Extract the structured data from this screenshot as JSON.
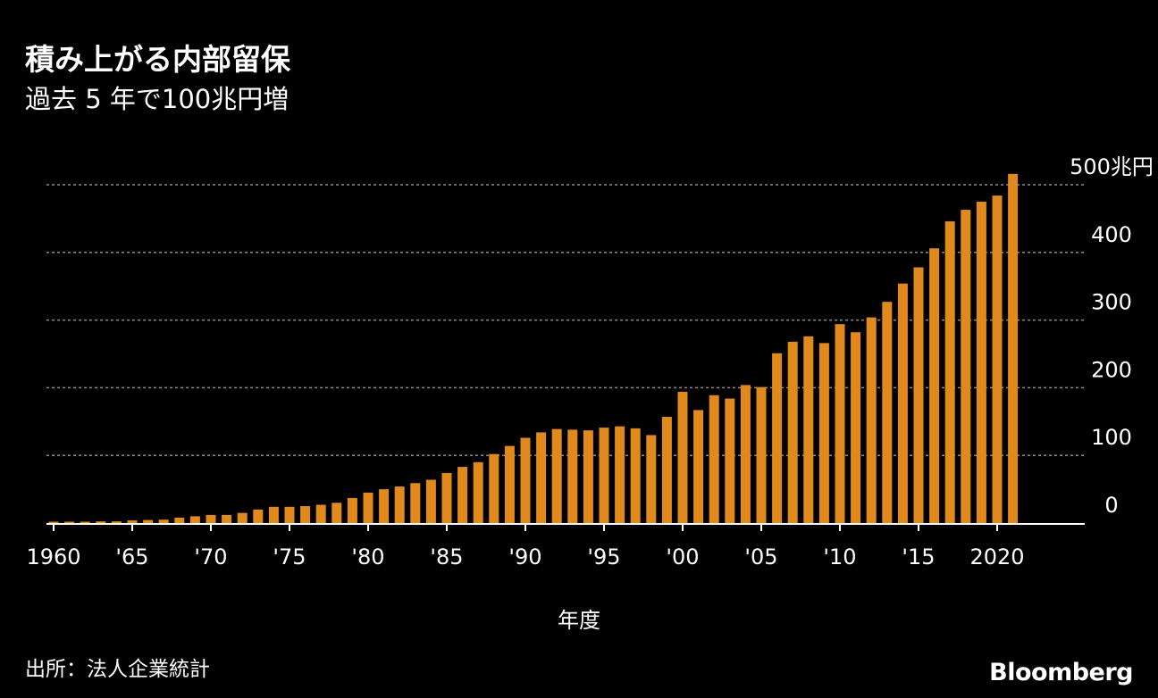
{
  "header": {
    "title": "積み上がる内部留保",
    "subtitle": "過去 5 年で100兆円増"
  },
  "footer": {
    "source": "出所：法人企業統計",
    "brand": "Bloomberg"
  },
  "colors": {
    "bar": "#E08A1E",
    "grid": "#8a8a8a",
    "axis": "#ffffff",
    "background": "#000000"
  },
  "chart_data": {
    "type": "bar",
    "title": "積み上がる内部留保",
    "subtitle": "過去 5 年で100兆円増",
    "xlabel": "年度",
    "ylabel": "兆円",
    "ylim": [
      0,
      500
    ],
    "grid": true,
    "y_ticks": [
      {
        "value": 0,
        "label": "0"
      },
      {
        "value": 100,
        "label": "100"
      },
      {
        "value": 200,
        "label": "200"
      },
      {
        "value": 300,
        "label": "300"
      },
      {
        "value": 400,
        "label": "400"
      },
      {
        "value": 500,
        "label": "500兆円"
      }
    ],
    "x_ticks": [
      {
        "year": 1960,
        "label": "1960"
      },
      {
        "year": 1965,
        "label": "'65"
      },
      {
        "year": 1970,
        "label": "'70"
      },
      {
        "year": 1975,
        "label": "'75"
      },
      {
        "year": 1980,
        "label": "'80"
      },
      {
        "year": 1985,
        "label": "'85"
      },
      {
        "year": 1990,
        "label": "'90"
      },
      {
        "year": 1995,
        "label": "'95"
      },
      {
        "year": 2000,
        "label": "'00"
      },
      {
        "year": 2005,
        "label": "'05"
      },
      {
        "year": 2010,
        "label": "'10"
      },
      {
        "year": 2015,
        "label": "'15"
      },
      {
        "year": 2020,
        "label": "2020"
      }
    ],
    "categories": [
      1960,
      1961,
      1962,
      1963,
      1964,
      1965,
      1966,
      1967,
      1968,
      1969,
      1970,
      1971,
      1972,
      1973,
      1974,
      1975,
      1976,
      1977,
      1978,
      1979,
      1980,
      1981,
      1982,
      1983,
      1984,
      1985,
      1986,
      1987,
      1988,
      1989,
      1990,
      1991,
      1992,
      1993,
      1994,
      1995,
      1996,
      1997,
      1998,
      1999,
      2000,
      2001,
      2002,
      2003,
      2004,
      2005,
      2006,
      2007,
      2008,
      2009,
      2010,
      2011,
      2012,
      2013,
      2014,
      2015,
      2016,
      2017,
      2018,
      2019,
      2020,
      2021
    ],
    "values": [
      2,
      2,
      2,
      2.5,
      2.5,
      4,
      4.5,
      5,
      8,
      10,
      12,
      12,
      15,
      20,
      24,
      24,
      25,
      27,
      30,
      37,
      45,
      50,
      54,
      59,
      64,
      74,
      83,
      90,
      102,
      114,
      126,
      134,
      139,
      138,
      137,
      141,
      143,
      140,
      130,
      157,
      194,
      167,
      189,
      184,
      204,
      201,
      251,
      268,
      276,
      266,
      294,
      282,
      304,
      327,
      354,
      378,
      406,
      446,
      463,
      475,
      484,
      516
    ]
  }
}
